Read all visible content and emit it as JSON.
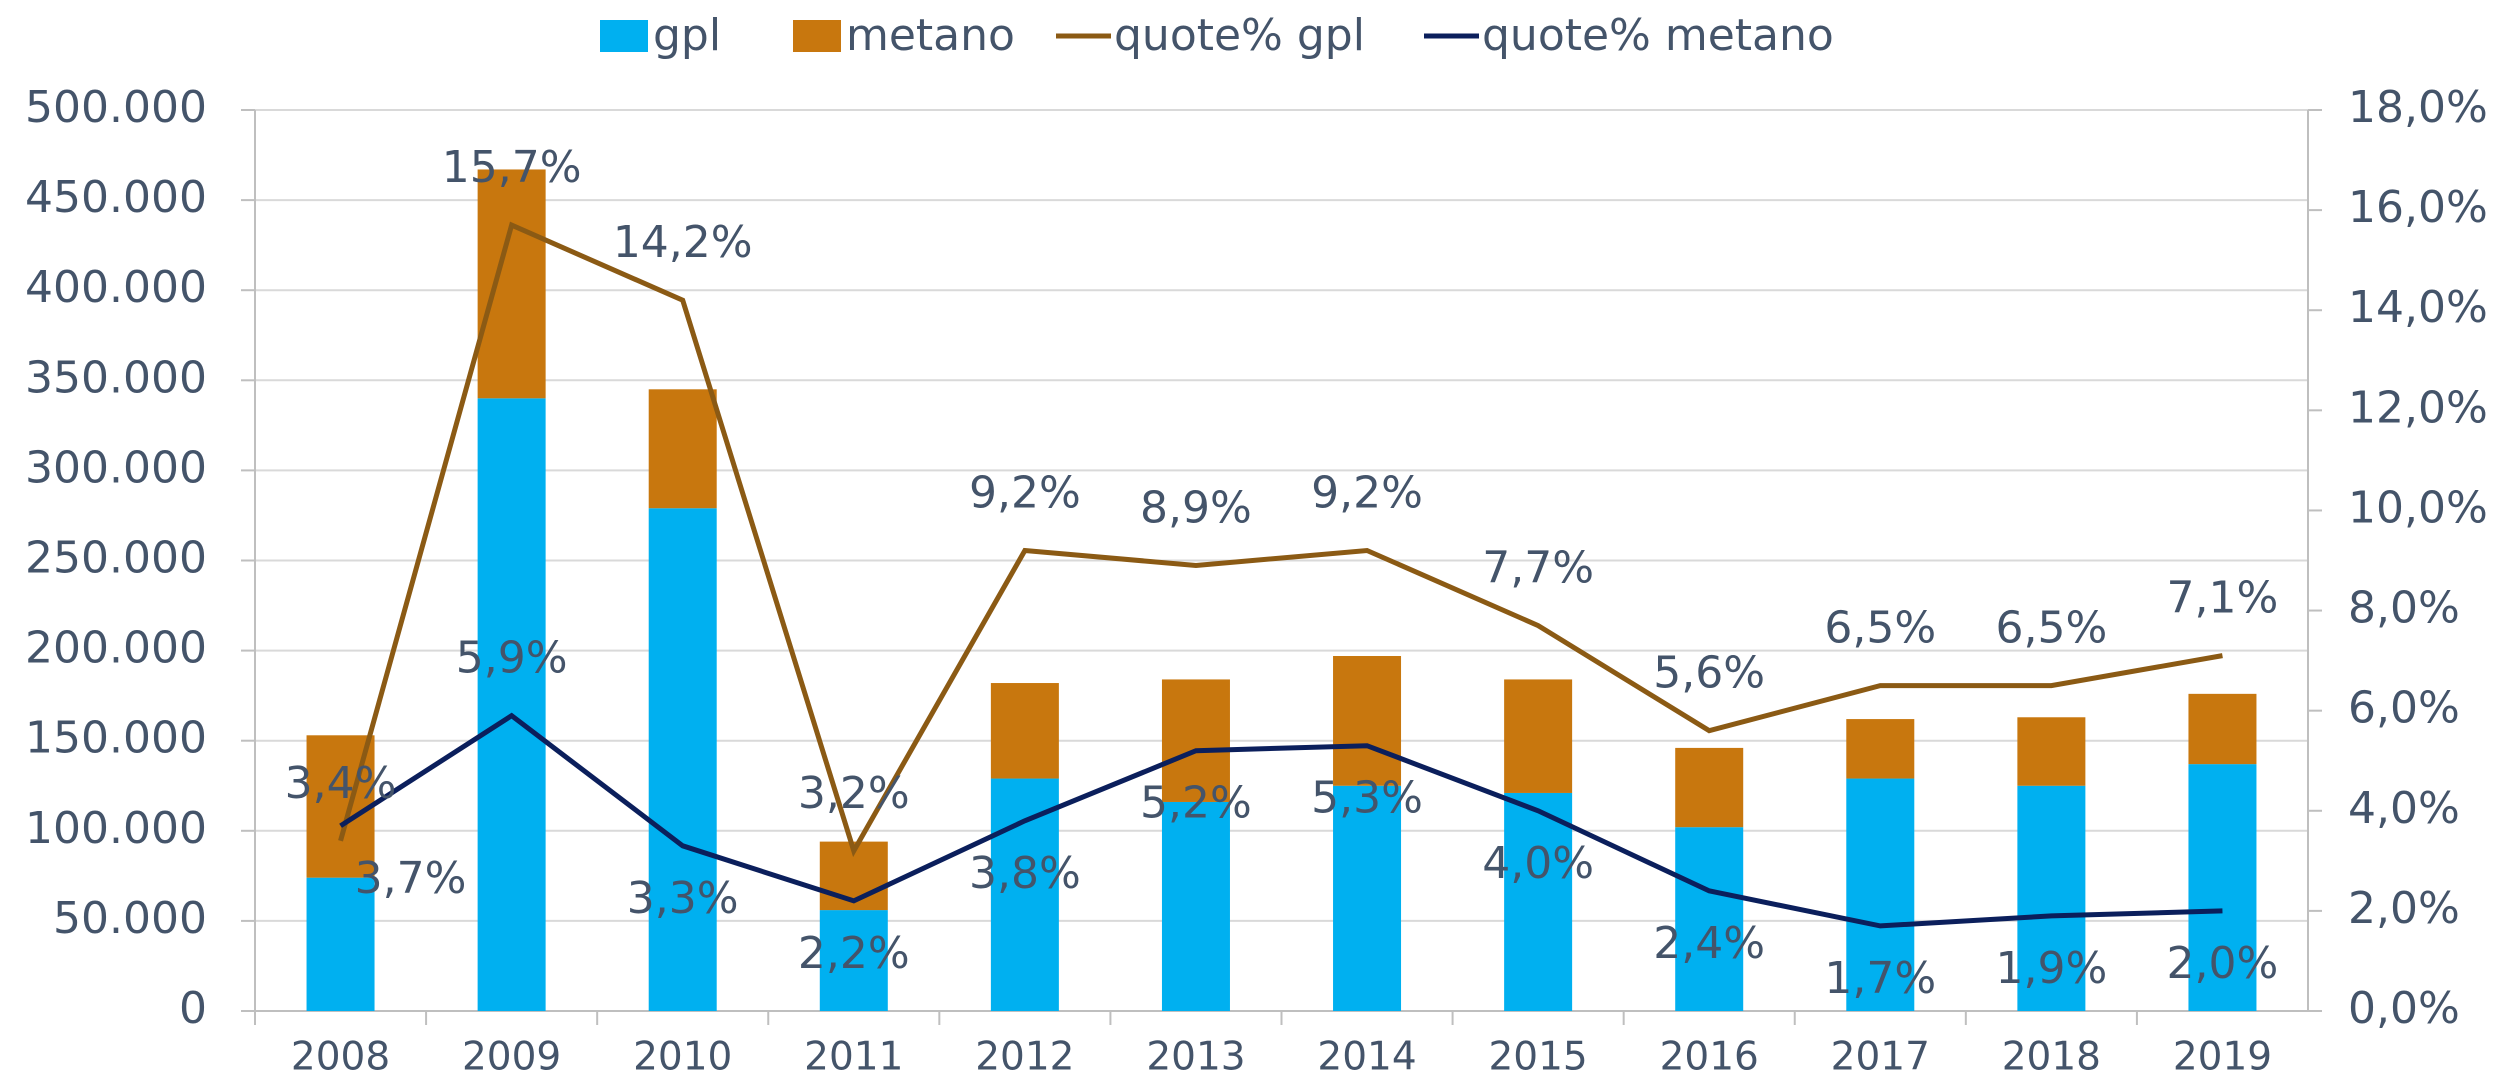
{
  "chart_data": {
    "type": "bar",
    "categories": [
      "2008",
      "2009",
      "2010",
      "2011",
      "2012",
      "2013",
      "2014",
      "2015",
      "2016",
      "2017",
      "2018",
      "2019"
    ],
    "series": [
      {
        "name": "gpl",
        "color": "#00b0f0",
        "values": [
          74000,
          340000,
          279000,
          56000,
          129000,
          116000,
          125000,
          121000,
          102000,
          129000,
          125000,
          137000
        ]
      },
      {
        "name": "metano",
        "color": "#c8770e",
        "values": [
          79000,
          127000,
          66000,
          38000,
          53000,
          68000,
          72000,
          63000,
          44000,
          33000,
          38000,
          39000
        ]
      },
      {
        "name": "quote% gpl",
        "type": "line",
        "axis": "y2",
        "color": "#8b5a14",
        "values": [
          3.4,
          15.7,
          14.2,
          3.2,
          9.2,
          8.9,
          9.2,
          7.7,
          5.6,
          6.5,
          6.5,
          7.1
        ],
        "value_labels": [
          "3,4%",
          "15,7%",
          "14,2%",
          "3,2%",
          "9,2%",
          "8,9%",
          "9,2%",
          "7,7%",
          "5,6%",
          "6,5%",
          "6,5%",
          "7,1%"
        ]
      },
      {
        "name": "quote% metano",
        "type": "line",
        "axis": "y2",
        "color": "#0b1f5c",
        "values": [
          3.7,
          5.9,
          3.3,
          2.2,
          3.8,
          5.2,
          5.3,
          4.0,
          2.4,
          1.7,
          1.9,
          2.0
        ],
        "value_labels": [
          "3,7%",
          "5,9%",
          "3,3%",
          "2,2%",
          "3,8%",
          "5,2%",
          "5,3%",
          "4,0%",
          "2,4%",
          "1,7%",
          "1,9%",
          "2,0%"
        ]
      }
    ],
    "stacked": true,
    "ylim": [
      0,
      500000
    ],
    "yticks": [
      0,
      {
        "value": 50000,
        "label": "50.000"
      },
      {
        "value": 100000,
        "label": "100.000"
      },
      {
        "value": 150000,
        "label": "150.000"
      },
      {
        "value": 200000,
        "label": "200.000"
      },
      {
        "value": 250000,
        "label": "250.000"
      },
      {
        "value": 300000,
        "label": "300.000"
      },
      {
        "value": 350000,
        "label": "350.000"
      },
      {
        "value": 400000,
        "label": "400.000"
      },
      {
        "value": 450000,
        "label": "450.000"
      },
      {
        "value": 500000,
        "label": "500.000"
      }
    ],
    "y2lim": [
      0,
      18
    ],
    "y2ticks": [
      {
        "value": 0,
        "label": "0,0%"
      },
      {
        "value": 2,
        "label": "2,0%"
      },
      {
        "value": 4,
        "label": "4,0%"
      },
      {
        "value": 6,
        "label": "6,0%"
      },
      {
        "value": 8,
        "label": "8,0%"
      },
      {
        "value": 10,
        "label": "10,0%"
      },
      {
        "value": 12,
        "label": "12,0%"
      },
      {
        "value": 14,
        "label": "14,0%"
      },
      {
        "value": 16,
        "label": "16,0%"
      },
      {
        "value": 18,
        "label": "18,0%"
      }
    ],
    "grid": true,
    "legend": "top"
  }
}
